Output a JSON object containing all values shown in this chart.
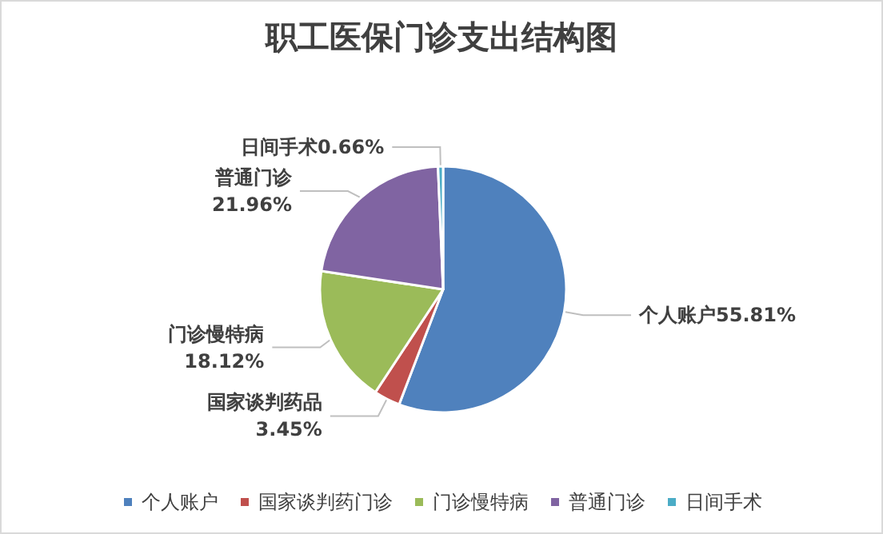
{
  "chart_data": {
    "type": "pie",
    "title": "职工医保门诊支出结构图",
    "categories": [
      "个人账户",
      "国家谈判药门诊",
      "门诊慢特病",
      "普通门诊",
      "日间手术"
    ],
    "values": [
      55.81,
      3.45,
      18.12,
      21.96,
      0.66
    ],
    "colors": [
      "#4f81bd",
      "#c0504d",
      "#9bbb59",
      "#8064a2",
      "#4bacc6"
    ],
    "value_labels": [
      "个人账户55.81%",
      "国家谈判药品\n3.45%",
      "门诊慢特病\n18.12%",
      "普通门诊\n21.96%",
      "日间手术0.66%"
    ],
    "legend": "bottom"
  }
}
